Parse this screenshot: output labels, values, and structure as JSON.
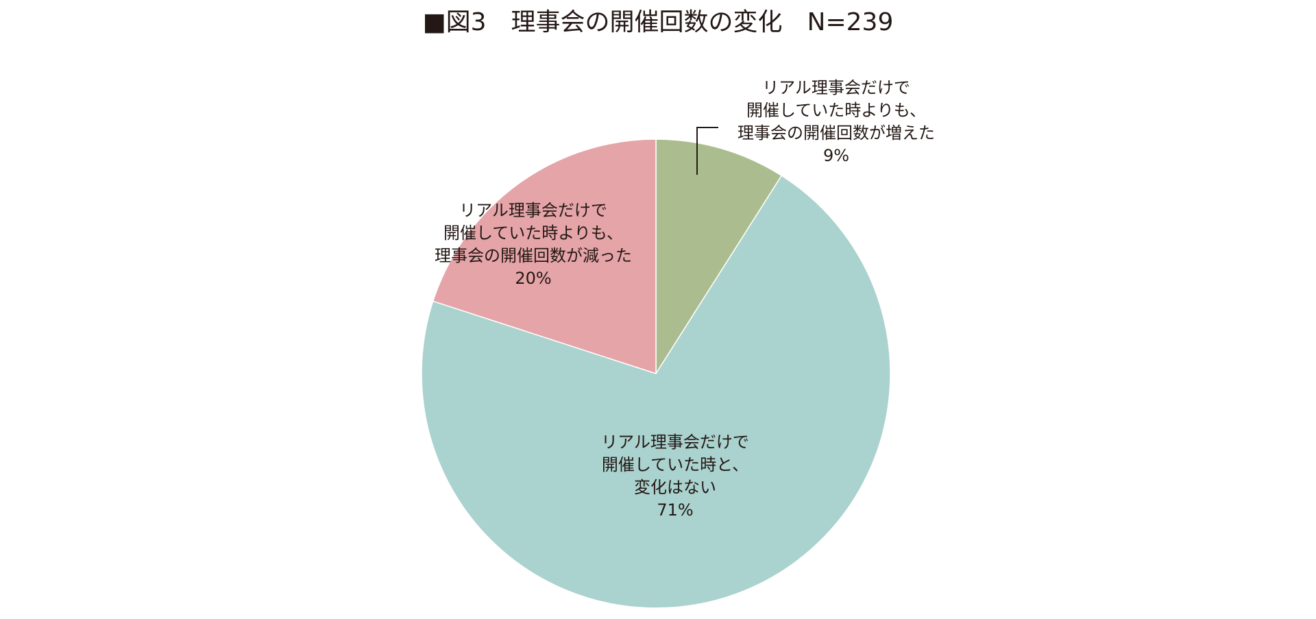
{
  "chart_data": {
    "type": "pie",
    "title": "■図3　理事会の開催回数の変化　N=239",
    "start_angle_deg": 0,
    "direction": "clockwise",
    "slices": [
      {
        "label_lines": [
          "リアル理事会だけで",
          "開催していた時よりも、",
          "理事会の開催回数が増えた"
        ],
        "value": 9,
        "value_label": "9%",
        "color": "#abbd8f",
        "label_placement": "outside-top-right-with-leader"
      },
      {
        "label_lines": [
          "リアル理事会だけで",
          "開催していた時と、",
          "変化はない"
        ],
        "value": 71,
        "value_label": "71%",
        "color": "#aad2ce",
        "label_placement": "inside"
      },
      {
        "label_lines": [
          "リアル理事会だけで",
          "開催していた時よりも、",
          "理事会の開催回数が減った"
        ],
        "value": 20,
        "value_label": "20%",
        "color": "#e5a4a7",
        "label_placement": "inside"
      }
    ]
  }
}
